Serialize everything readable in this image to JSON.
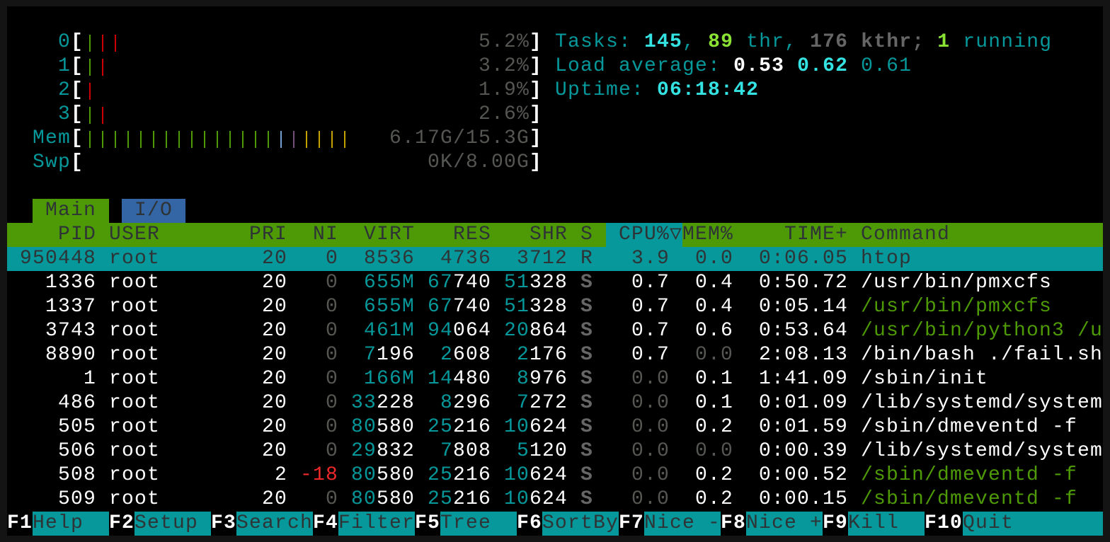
{
  "meters": {
    "cpus": [
      {
        "label": "0",
        "value": "5.2%",
        "bars": [
          "green",
          "red",
          "red"
        ]
      },
      {
        "label": "1",
        "value": "3.2%",
        "bars": [
          "green",
          "red"
        ]
      },
      {
        "label": "2",
        "value": "1.9%",
        "bars": [
          "red"
        ]
      },
      {
        "label": "3",
        "value": "2.6%",
        "bars": [
          "green",
          "red"
        ]
      }
    ],
    "mem": {
      "label": "Mem",
      "value": "6.17G/15.3G",
      "bars": [
        "green",
        "green",
        "green",
        "green",
        "green",
        "green",
        "green",
        "green",
        "green",
        "green",
        "green",
        "green",
        "green",
        "green",
        "green",
        "blue",
        "magenta",
        "orange",
        "orange",
        "orange",
        "orange"
      ]
    },
    "swp": {
      "label": "Swp",
      "value": "0K/8.00G",
      "bars": []
    },
    "open_bracket": "[",
    "close_bracket": "]"
  },
  "bar_colors": {
    "green": "#4e9a06",
    "red": "#cc0000",
    "blue": "#729fcf",
    "magenta": "#75507b",
    "orange": "#c4a000"
  },
  "summary": {
    "tasks": {
      "label": "Tasks:",
      "total": "145",
      "sep": ",",
      "threads": "89",
      "thr_label": "thr,",
      "kthreads": "176",
      "kthr_label": "kthr;",
      "running": "1",
      "running_label": "running"
    },
    "load": {
      "label": "Load average:",
      "l1": "0.53",
      "l5": "0.62",
      "l15": "0.61"
    },
    "uptime": {
      "label": "Uptime:",
      "value": "06:18:42"
    }
  },
  "tabs": [
    {
      "label": "Main",
      "active": true
    },
    {
      "label": "I/O",
      "active": false
    }
  ],
  "columns": {
    "pid": "PID",
    "user": "USER",
    "pri": "PRI",
    "ni": "NI",
    "virt": "VIRT",
    "res": "RES",
    "shr": "SHR",
    "s": "S",
    "cpu": "CPU%▽",
    "mem": "MEM%",
    "time": "TIME+",
    "command": "Command",
    "sorted": "cpu"
  },
  "processes": [
    {
      "pid": "950448",
      "user": "root",
      "pri": "20",
      "ni": "0",
      "virt": "8536",
      "res": "4736",
      "shr": "3712",
      "s": "R",
      "cpu": "3.9",
      "mem": "0.0",
      "time": "0:06.05",
      "command": "htop",
      "selected": true,
      "thread": false
    },
    {
      "pid": "1336",
      "user": "root",
      "pri": "20",
      "ni": "0",
      "virt": "655M",
      "res": "67740",
      "shr": "51328",
      "s": "S",
      "cpu": "0.7",
      "mem": "0.4",
      "time": "0:50.72",
      "command": "/usr/bin/pmxcfs",
      "thread": false
    },
    {
      "pid": "1337",
      "user": "root",
      "pri": "20",
      "ni": "0",
      "virt": "655M",
      "res": "67740",
      "shr": "51328",
      "s": "S",
      "cpu": "0.7",
      "mem": "0.4",
      "time": "0:05.14",
      "command": "/usr/bin/pmxcfs",
      "thread": true
    },
    {
      "pid": "3743",
      "user": "root",
      "pri": "20",
      "ni": "0",
      "virt": "461M",
      "res": "94064",
      "shr": "20864",
      "s": "S",
      "cpu": "0.7",
      "mem": "0.6",
      "time": "0:53.64",
      "command": "/usr/bin/python3 /u",
      "thread": true
    },
    {
      "pid": "8890",
      "user": "root",
      "pri": "20",
      "ni": "0",
      "virt": "7196",
      "res": "2608",
      "shr": "2176",
      "s": "S",
      "cpu": "0.7",
      "mem": "0.0",
      "time": "2:08.13",
      "command": "/bin/bash ./fail.sh",
      "thread": false
    },
    {
      "pid": "1",
      "user": "root",
      "pri": "20",
      "ni": "0",
      "virt": "166M",
      "res": "14480",
      "shr": "8976",
      "s": "S",
      "cpu": "0.0",
      "mem": "0.1",
      "time": "1:41.09",
      "command": "/sbin/init",
      "thread": false
    },
    {
      "pid": "486",
      "user": "root",
      "pri": "20",
      "ni": "0",
      "virt": "33228",
      "res": "8296",
      "shr": "7272",
      "s": "S",
      "cpu": "0.0",
      "mem": "0.1",
      "time": "0:01.09",
      "command": "/lib/systemd/system",
      "thread": false
    },
    {
      "pid": "505",
      "user": "root",
      "pri": "20",
      "ni": "0",
      "virt": "80580",
      "res": "25216",
      "shr": "10624",
      "s": "S",
      "cpu": "0.0",
      "mem": "0.2",
      "time": "0:01.59",
      "command": "/sbin/dmeventd -f",
      "thread": false
    },
    {
      "pid": "506",
      "user": "root",
      "pri": "20",
      "ni": "0",
      "virt": "29832",
      "res": "7808",
      "shr": "5120",
      "s": "S",
      "cpu": "0.0",
      "mem": "0.0",
      "time": "0:00.39",
      "command": "/lib/systemd/system",
      "thread": false
    },
    {
      "pid": "508",
      "user": "root",
      "pri": "2",
      "ni": "-18",
      "virt": "80580",
      "res": "25216",
      "shr": "10624",
      "s": "S",
      "cpu": "0.0",
      "mem": "0.2",
      "time": "0:00.52",
      "command": "/sbin/dmeventd -f",
      "thread": true
    },
    {
      "pid": "509",
      "user": "root",
      "pri": "20",
      "ni": "0",
      "virt": "80580",
      "res": "25216",
      "shr": "10624",
      "s": "S",
      "cpu": "0.0",
      "mem": "0.2",
      "time": "0:00.15",
      "command": "/sbin/dmeventd -f",
      "thread": true
    }
  ],
  "footer": [
    {
      "key": "F1",
      "label": "Help"
    },
    {
      "key": "F2",
      "label": "Setup"
    },
    {
      "key": "F3",
      "label": "Search"
    },
    {
      "key": "F4",
      "label": "Filter"
    },
    {
      "key": "F5",
      "label": "Tree"
    },
    {
      "key": "F6",
      "label": "SortBy"
    },
    {
      "key": "F7",
      "label": "Nice -"
    },
    {
      "key": "F8",
      "label": "Nice +"
    },
    {
      "key": "F9",
      "label": "Kill"
    },
    {
      "key": "F10",
      "label": "Quit"
    }
  ],
  "colors": {
    "teal": "#06989a",
    "header_green": "#4e9a06",
    "tab_blue": "#3465a4",
    "dark_text": "#2e3436"
  }
}
